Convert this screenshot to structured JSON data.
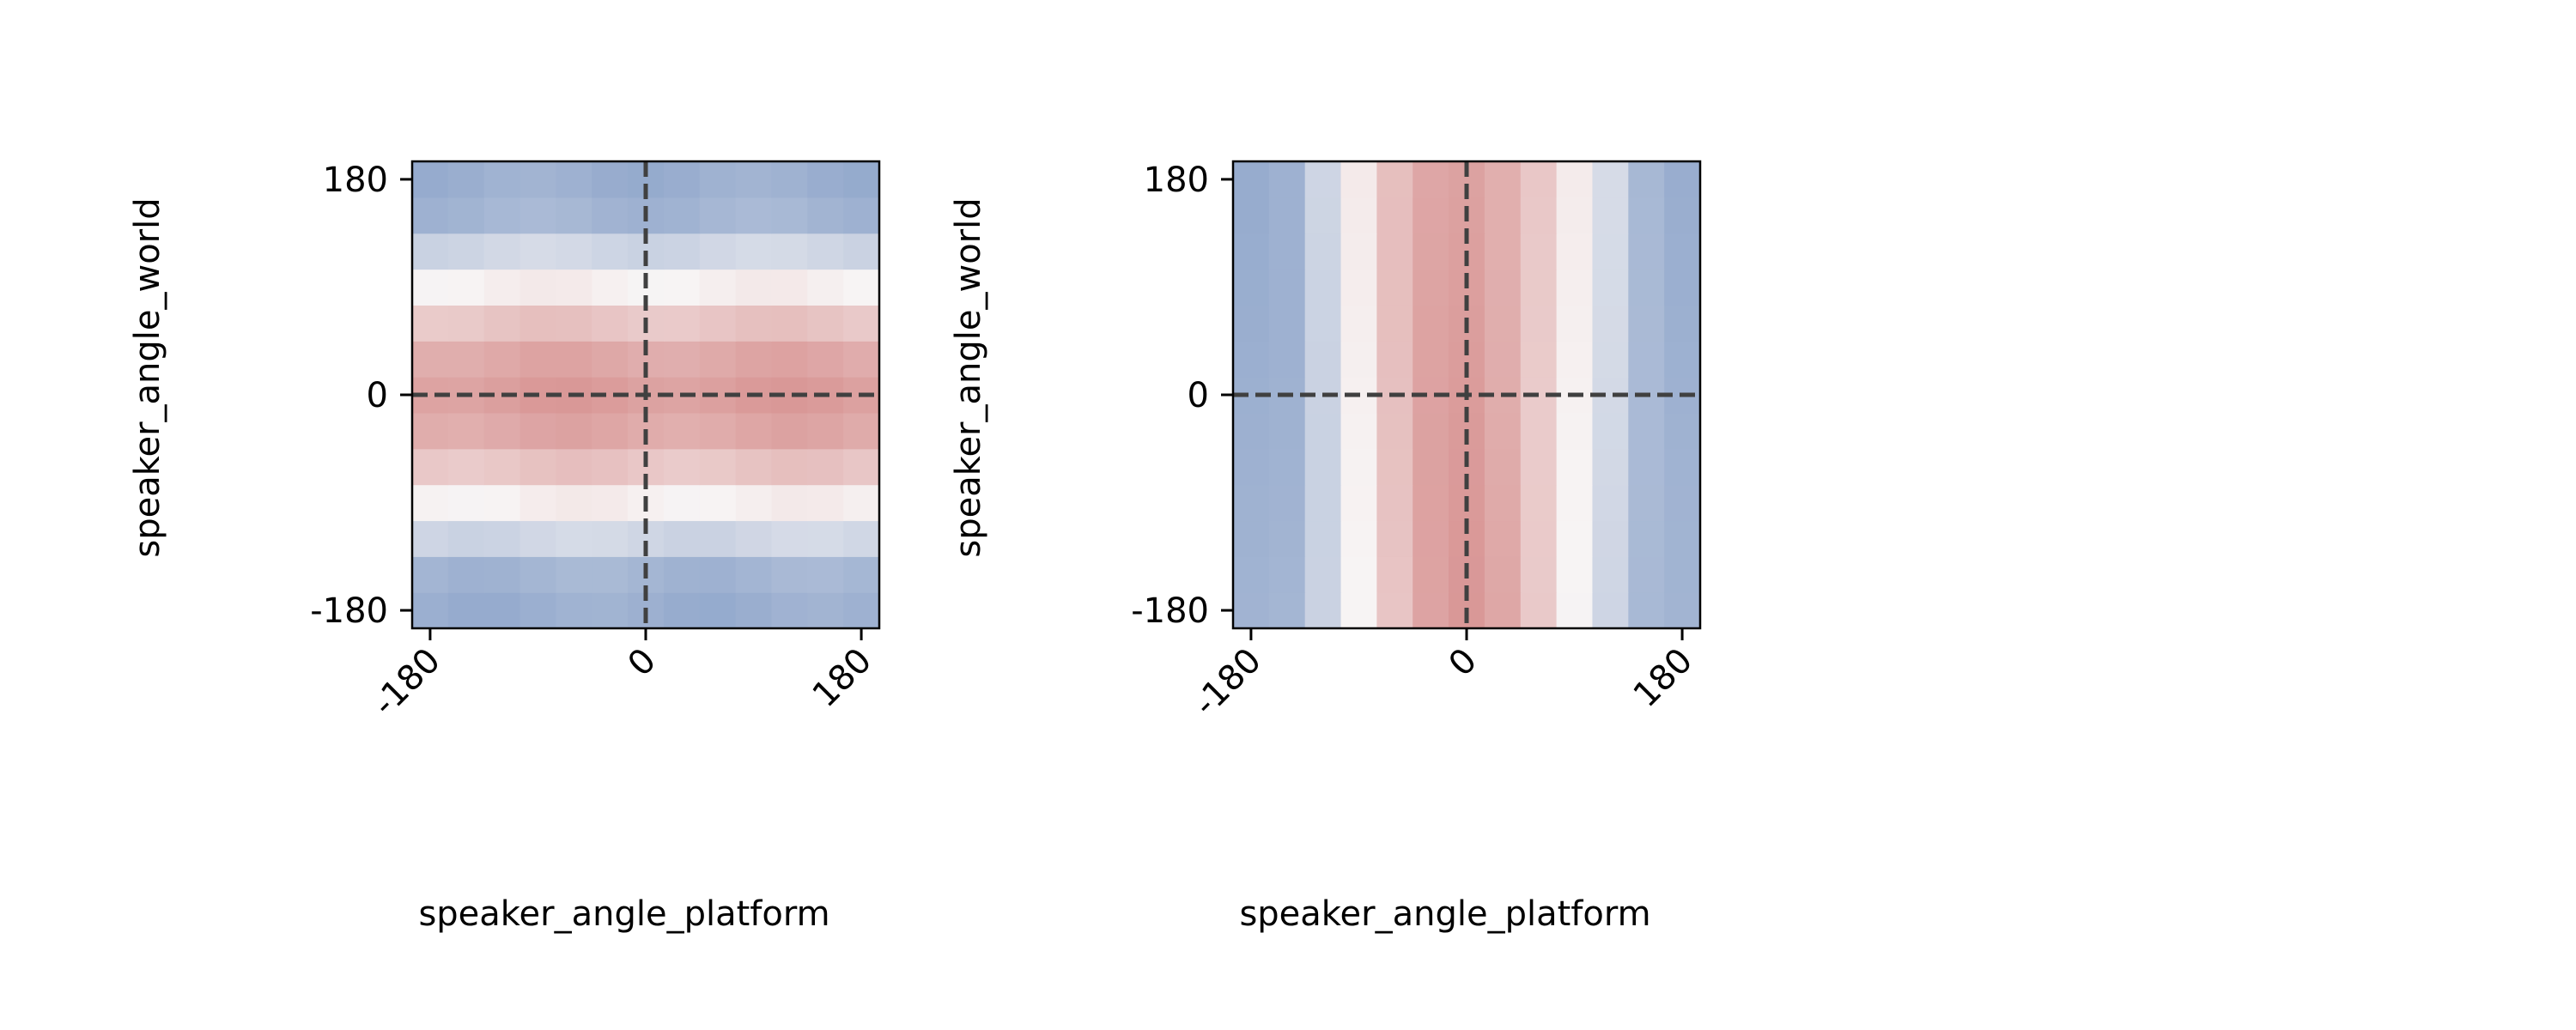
{
  "chart_data": [
    {
      "type": "heatmap",
      "title": "",
      "xlabel": "speaker_angle_platform",
      "ylabel": "speaker_angle_world",
      "x_ticks": [
        -180,
        0,
        180
      ],
      "y_ticks": [
        -180,
        0,
        180
      ],
      "x_tick_labels": [
        "-180",
        "0",
        "180"
      ],
      "y_tick_labels": [
        "-180",
        "0",
        "180"
      ],
      "xlim": [
        -195,
        195
      ],
      "ylim": [
        -195,
        195
      ],
      "grid": false,
      "colormap": {
        "low": "#8fa6cb",
        "mid": "#f7f4f4",
        "high": "#d58b8a"
      },
      "value_range": [
        -1,
        1
      ],
      "reference_lines": {
        "x": 0,
        "y": 0,
        "style": "dashed",
        "color": "#404040"
      },
      "varies_along": "y",
      "bins": [
        -180,
        -150,
        -120,
        -90,
        -60,
        -30,
        0,
        30,
        60,
        90,
        120,
        150,
        180
      ],
      "profile": [
        -0.88,
        -0.8,
        -0.38,
        0.05,
        0.45,
        0.72,
        0.82,
        0.72,
        0.45,
        0.05,
        -0.38,
        -0.8,
        -0.88
      ]
    },
    {
      "type": "heatmap",
      "title": "",
      "xlabel": "speaker_angle_platform",
      "ylabel": "speaker_angle_world",
      "x_ticks": [
        -180,
        0,
        180
      ],
      "y_ticks": [
        -180,
        0,
        180
      ],
      "x_tick_labels": [
        "-180",
        "0",
        "180"
      ],
      "y_tick_labels": [
        "-180",
        "0",
        "180"
      ],
      "xlim": [
        -195,
        195
      ],
      "ylim": [
        -195,
        195
      ],
      "grid": false,
      "colormap": {
        "low": "#8fa6cb",
        "mid": "#f7f4f4",
        "high": "#d58b8a"
      },
      "value_range": [
        -1,
        1
      ],
      "reference_lines": {
        "x": 0,
        "y": 0,
        "style": "dashed",
        "color": "#404040"
      },
      "varies_along": "x",
      "bins": [
        -180,
        -150,
        -120,
        -90,
        -60,
        -30,
        0,
        30,
        60,
        90,
        120,
        150,
        180
      ],
      "profile": [
        -0.88,
        -0.8,
        -0.38,
        0.05,
        0.45,
        0.72,
        0.82,
        0.72,
        0.45,
        0.05,
        -0.38,
        -0.8,
        -0.88
      ]
    }
  ]
}
